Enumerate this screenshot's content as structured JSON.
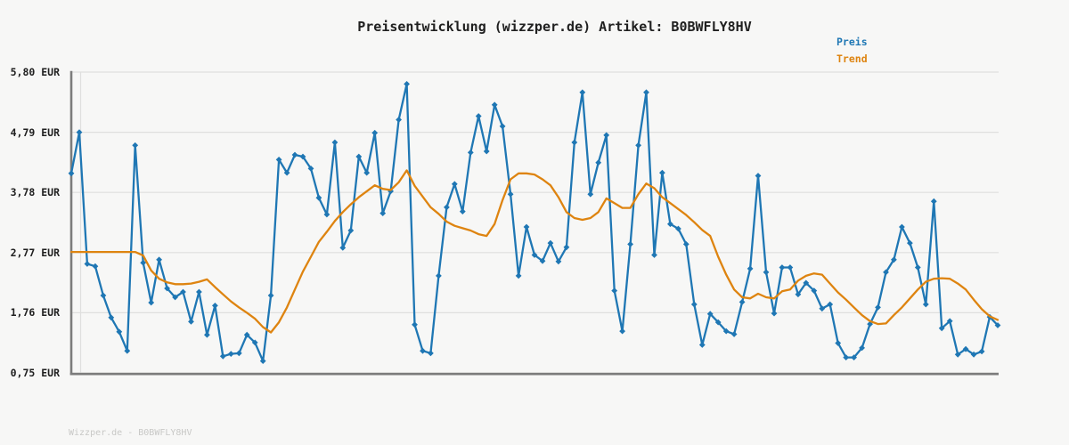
{
  "header": {
    "title": "Preisentwicklung (wizzper.de) Artikel: B0BWFLY8HV"
  },
  "legend": {
    "items": [
      {
        "label": "Preis",
        "color": "#1f77b4"
      },
      {
        "label": "Trend",
        "color": "#de8410"
      }
    ]
  },
  "y_axis": {
    "tick_labels": [
      "5,80 EUR",
      "4,79 EUR",
      "3,78 EUR",
      "2,77 EUR",
      "1,76 EUR",
      "0,75 EUR"
    ],
    "tick_values": [
      5.8,
      4.79,
      3.78,
      2.77,
      1.76,
      0.75
    ],
    "unit": "EUR"
  },
  "footer": {
    "text": "Wizzper.de - B0BWFLY8HV"
  },
  "colors": {
    "background": "#f7f7f6",
    "grid": "#dfdfde",
    "axis": "#7c7c7c",
    "title_text": "#202020",
    "footer_text": "#c8c8c6",
    "preis": "#1f77b4",
    "trend": "#de8410"
  },
  "chart_data": {
    "type": "line",
    "title": "Preisentwicklung (wizzper.de) Artikel: B0BWFLY8HV",
    "xlabel": "",
    "ylabel": "EUR",
    "ylim": [
      0.75,
      5.8
    ],
    "yticks": [
      0.75,
      1.76,
      2.77,
      3.78,
      4.79,
      5.8
    ],
    "grid": "horizontal",
    "legend_position": "top-right",
    "series": [
      {
        "name": "Preis",
        "color": "#1f77b4",
        "marker": "diamond",
        "values": [
          4.1,
          4.79,
          2.58,
          2.54,
          2.05,
          1.68,
          1.44,
          1.12,
          4.57,
          2.6,
          1.93,
          2.65,
          2.17,
          2.02,
          2.11,
          1.61,
          2.11,
          1.39,
          1.88,
          1.03,
          1.07,
          1.08,
          1.39,
          1.26,
          0.95,
          2.05,
          4.33,
          4.11,
          4.41,
          4.38,
          4.18,
          3.69,
          3.41,
          4.62,
          2.85,
          3.14,
          4.38,
          4.11,
          4.78,
          3.43,
          3.8,
          5.0,
          5.6,
          1.56,
          1.12,
          1.08,
          2.38,
          3.53,
          3.92,
          3.46,
          4.45,
          5.06,
          4.47,
          5.25,
          4.89,
          3.75,
          2.38,
          3.2,
          2.73,
          2.63,
          2.93,
          2.62,
          2.86,
          4.62,
          5.46,
          3.75,
          4.28,
          4.74,
          2.13,
          1.45,
          2.91,
          4.57,
          5.46,
          2.73,
          4.11,
          3.25,
          3.17,
          2.91,
          1.9,
          1.22,
          1.74,
          1.6,
          1.45,
          1.4,
          1.94,
          2.5,
          4.06,
          2.44,
          1.75,
          2.52,
          2.52,
          2.07,
          2.26,
          2.13,
          1.83,
          1.9,
          1.25,
          1.01,
          1.01,
          1.17,
          1.57,
          1.85,
          2.44,
          2.65,
          3.2,
          2.93,
          2.52,
          1.9,
          3.63,
          1.5,
          1.62,
          1.06,
          1.15,
          1.06,
          1.11,
          1.69,
          1.55
        ]
      },
      {
        "name": "Trend",
        "color": "#de8410",
        "marker": "none",
        "values": [
          2.78,
          2.78,
          2.78,
          2.78,
          2.78,
          2.78,
          2.78,
          2.78,
          2.78,
          2.72,
          2.47,
          2.33,
          2.27,
          2.24,
          2.24,
          2.25,
          2.28,
          2.32,
          2.19,
          2.07,
          1.95,
          1.85,
          1.76,
          1.66,
          1.52,
          1.43,
          1.6,
          1.85,
          2.15,
          2.45,
          2.7,
          2.95,
          3.12,
          3.3,
          3.45,
          3.58,
          3.7,
          3.8,
          3.9,
          3.84,
          3.82,
          3.95,
          4.15,
          3.89,
          3.71,
          3.53,
          3.42,
          3.29,
          3.22,
          3.18,
          3.14,
          3.08,
          3.05,
          3.25,
          3.65,
          4.0,
          4.1,
          4.1,
          4.08,
          4.0,
          3.9,
          3.7,
          3.45,
          3.35,
          3.32,
          3.35,
          3.45,
          3.68,
          3.6,
          3.52,
          3.52,
          3.75,
          3.93,
          3.85,
          3.7,
          3.6,
          3.5,
          3.4,
          3.28,
          3.15,
          3.05,
          2.7,
          2.4,
          2.15,
          2.02,
          2.0,
          2.08,
          2.02,
          2.0,
          2.12,
          2.15,
          2.3,
          2.38,
          2.42,
          2.4,
          2.25,
          2.1,
          1.98,
          1.85,
          1.72,
          1.62,
          1.57,
          1.58,
          1.72,
          1.85,
          2.0,
          2.15,
          2.28,
          2.33,
          2.34,
          2.33,
          2.25,
          2.15,
          1.98,
          1.82,
          1.7,
          1.64
        ]
      }
    ]
  }
}
